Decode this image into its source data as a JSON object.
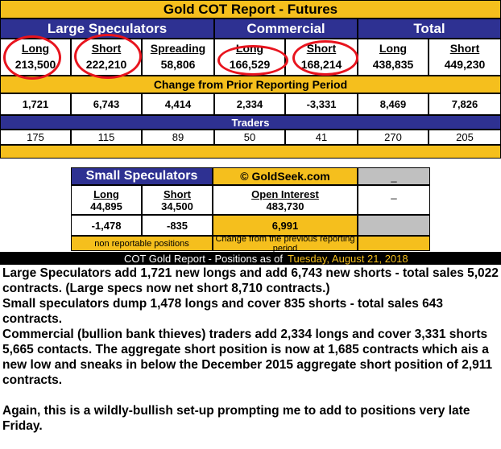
{
  "title": "Gold COT Report - Futures",
  "groups": {
    "large": "Large Speculators",
    "commercial": "Commercial",
    "total": "Total"
  },
  "positions": [
    {
      "label": "Long",
      "value": "213,500"
    },
    {
      "label": "Short",
      "value": "222,210"
    },
    {
      "label": "Spreading",
      "value": "58,806"
    },
    {
      "label": "Long",
      "value": "166,529"
    },
    {
      "label": "Short",
      "value": "168,214"
    },
    {
      "label": "Long",
      "value": "438,835"
    },
    {
      "label": "Short",
      "value": "449,230"
    }
  ],
  "change_header": "Change from Prior Reporting Period",
  "changes": [
    "1,721",
    "6,743",
    "4,414",
    "2,334",
    "-3,331",
    "8,469",
    "7,826"
  ],
  "traders_header": "Traders",
  "traders": [
    "175",
    "115",
    "89",
    "50",
    "41",
    "270",
    "205"
  ],
  "small": {
    "header": "Small Speculators",
    "copyright": "© GoldSeek.com",
    "corner_top": "_",
    "corner_mid": "_",
    "long_label": "Long",
    "long_value": "44,895",
    "short_label": "Short",
    "short_value": "34,500",
    "oi_label": "Open Interest",
    "oi_value": "483,730",
    "long_change": "-1,478",
    "short_change": "-835",
    "oi_change": "6,991",
    "note_left": "non reportable positions",
    "note_right": "Change from the previous reporting period"
  },
  "caption": {
    "label": "COT Gold Report - Positions as of",
    "date": "Tuesday, August 21, 2018"
  },
  "commentary": [
    "Large Speculators add 1,721 new longs and add 6,743 new shorts - total sales 5,022 contracts. (Large specs now net short 8,710 contracts.)",
    "Small speculators dump 1,478 longs and cover 835 shorts - total sales 643 contracts.",
    "Commercial (bullion bank thieves) traders add 2,334 longs and cover 3,331 shorts 5,665 contacts. The aggregate short position is now at 1,685 contracts which ais a new low and sneaks in below the December 2015 aggregate short position of 2,911 contracts.",
    "Again, this is a wildly-bullish set-up prompting me to add to positions very late Friday."
  ],
  "colors": {
    "gold": "#f5bf1d",
    "navy": "#2e3192",
    "highlight_oval": "#e8141e",
    "grey": "#c0c0c0"
  }
}
